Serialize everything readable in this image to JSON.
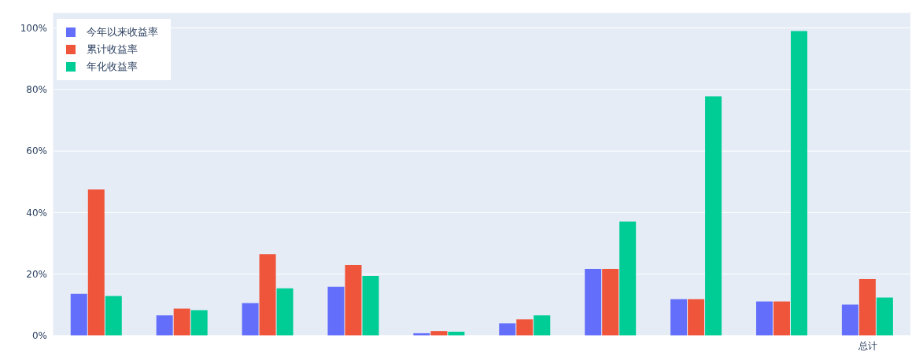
{
  "chart_data": {
    "type": "bar",
    "categories": [
      null,
      null,
      null,
      null,
      null,
      null,
      null,
      null,
      null,
      "总计"
    ],
    "series": [
      {
        "name": "今年以来收益率",
        "color": "#636efa",
        "values": [
          13.6,
          6.6,
          10.6,
          15.9,
          0.8,
          4.0,
          21.7,
          11.9,
          11.1,
          10.1
        ]
      },
      {
        "name": "累计收益率",
        "color": "#ef553b",
        "values": [
          47.5,
          8.8,
          26.5,
          23.0,
          1.5,
          5.3,
          21.7,
          11.9,
          11.1,
          18.4
        ]
      },
      {
        "name": "年化收益率",
        "color": "#00cc96",
        "values": [
          12.9,
          8.3,
          15.4,
          19.4,
          1.3,
          6.6,
          37.1,
          77.8,
          99.0,
          12.4
        ]
      }
    ],
    "ylim": [
      0,
      105
    ],
    "yticks": [
      {
        "value": 0,
        "label": "0%"
      },
      {
        "value": 20,
        "label": "20%"
      },
      {
        "value": 40,
        "label": "40%"
      },
      {
        "value": 60,
        "label": "60%"
      },
      {
        "value": 80,
        "label": "80%"
      },
      {
        "value": 100,
        "label": "100%"
      }
    ],
    "grid": "y",
    "legend": "top left"
  }
}
